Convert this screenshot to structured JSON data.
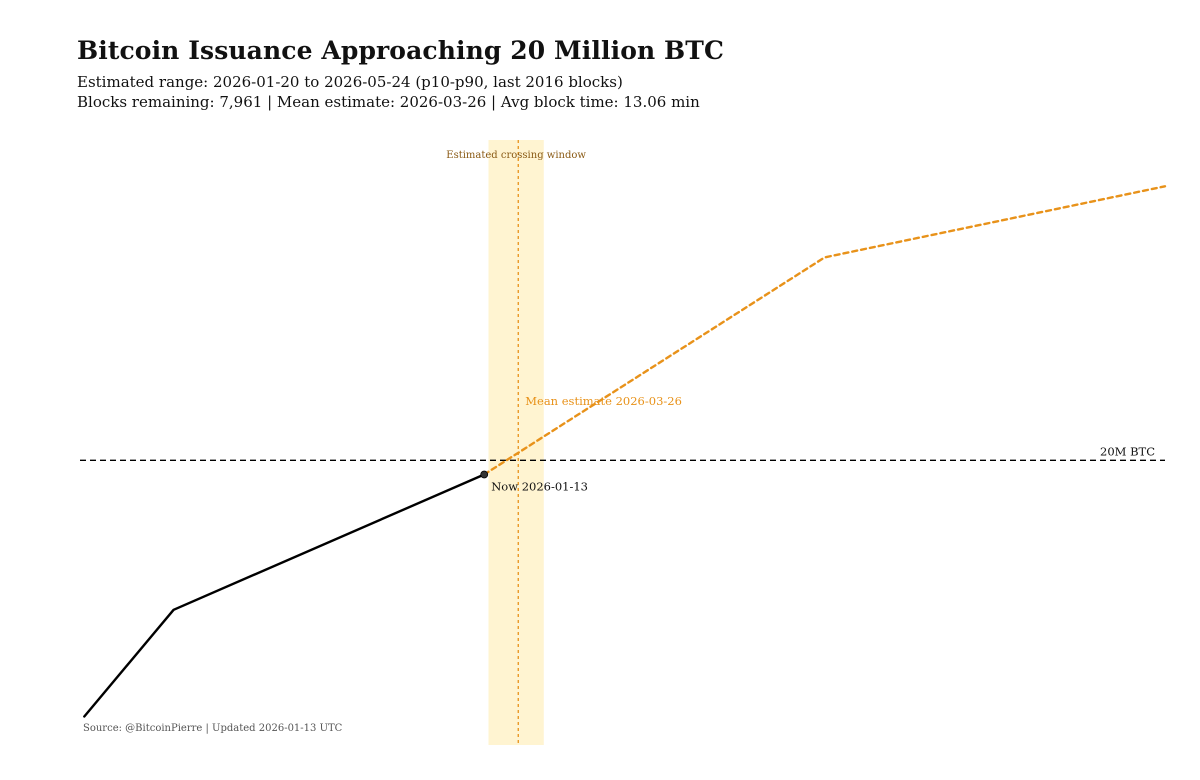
{
  "title": "Bitcoin Issuance Approaching 20 Million BTC",
  "subtitle_range": "Estimated range: 2026-01-20 to 2026-05-24 (p10-p90, last 2016 blocks)",
  "subtitle_stats": "Blocks remaining: 7,961 | Mean estimate: 2026-03-26 | Avg block time: 13.06 min",
  "source": "Source: @BitcoinPierre | Updated 2026-01-13 UTC",
  "colors": {
    "actual": "#000000",
    "projection": "#e8921a",
    "window": "#fff4d1",
    "window_label": "#8a5a14",
    "threshold": "#000000"
  },
  "chart_data": {
    "type": "line",
    "title": "Bitcoin Issuance Approaching 20 Million BTC",
    "xlabel": "",
    "ylabel": "",
    "grid": false,
    "axes_visible": false,
    "legend": "none",
    "series": [
      {
        "style": "solid",
        "color": "#000000",
        "points": [
          [
            -0.94,
            -0.72
          ],
          [
            -0.73,
            -0.42
          ],
          [
            0.0,
            -0.04
          ]
        ]
      },
      {
        "style": "dashed",
        "color": "#e8921a",
        "points": [
          [
            0.0,
            -0.04
          ],
          [
            0.8,
            0.57
          ],
          [
            1.6,
            0.77
          ]
        ]
      }
    ],
    "xlim": [
      -0.95,
      1.6
    ],
    "ylim": [
      -0.8,
      0.9
    ],
    "reference_line": {
      "y": 0.0,
      "label": "20M BTC",
      "style": "dashed"
    },
    "crossing_window": {
      "x_start": 0.01,
      "x_end": 0.14,
      "label": "Estimated crossing window"
    },
    "mean_estimate": {
      "x": 0.08,
      "label": "Mean estimate 2026-03-26"
    },
    "now_point": {
      "x": 0.0,
      "y": -0.04,
      "label": "Now 2026-01-13"
    }
  }
}
